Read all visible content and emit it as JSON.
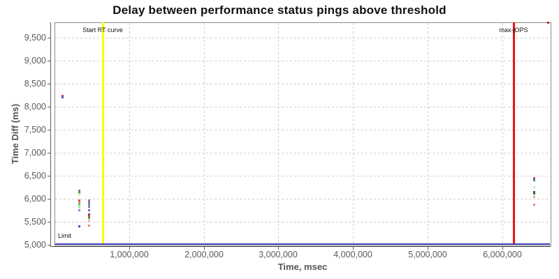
{
  "chart_data": {
    "type": "scatter",
    "title": "Delay between performance status pings above threshold",
    "xlabel": "Time, msec",
    "ylabel": "Time Diff (ms)",
    "xlim": [
      0,
      6650000
    ],
    "ylim": [
      5000,
      9840
    ],
    "grid": "dashed-lightgray-both-axes",
    "legend": "none",
    "x_ticks": [
      {
        "value": 1000000,
        "label": "1,000,000"
      },
      {
        "value": 2000000,
        "label": "2,000,000"
      },
      {
        "value": 3000000,
        "label": "3,000,000"
      },
      {
        "value": 4000000,
        "label": "4,000,000"
      },
      {
        "value": 5000000,
        "label": "5,000,000"
      },
      {
        "value": 6000000,
        "label": "6,000,000"
      }
    ],
    "y_ticks": [
      {
        "value": 5000,
        "label": "5,000"
      },
      {
        "value": 5500,
        "label": "5,500"
      },
      {
        "value": 6000,
        "label": "6,000"
      },
      {
        "value": 6500,
        "label": "6,500"
      },
      {
        "value": 7000,
        "label": "7,000"
      },
      {
        "value": 7500,
        "label": "7,500"
      },
      {
        "value": 8000,
        "label": "8,000"
      },
      {
        "value": 8500,
        "label": "8,500"
      },
      {
        "value": 9000,
        "label": "9,000"
      },
      {
        "value": 9500,
        "label": "9,500"
      }
    ],
    "annotations": [
      {
        "name": "start-rt-curve",
        "type": "vline",
        "x": 650000,
        "label": "Start RT curve",
        "color": "#ffff00"
      },
      {
        "name": "max-jops",
        "type": "vline",
        "x": 6150000,
        "label": "max-jOPS",
        "color": "#ee1111"
      },
      {
        "name": "limit",
        "type": "hline",
        "y": 5000,
        "label": "Limit",
        "color": "#3535b5"
      }
    ],
    "points": [
      {
        "x": 110000,
        "y": 8245,
        "color": "#b5493a"
      },
      {
        "x": 110000,
        "y": 8212,
        "color": "#4a55c8"
      },
      {
        "x": 330000,
        "y": 6176,
        "color": "#a85aa8"
      },
      {
        "x": 330000,
        "y": 6140,
        "color": "#2f9a9a"
      },
      {
        "x": 330000,
        "y": 6095,
        "color": "#e8e868"
      },
      {
        "x": 330000,
        "y": 5956,
        "color": "#d85555"
      },
      {
        "x": 330000,
        "y": 5920,
        "color": "#ef9a8a"
      },
      {
        "x": 330000,
        "y": 5888,
        "color": "#4fa84f"
      },
      {
        "x": 330000,
        "y": 5852,
        "color": "#8fe88f"
      },
      {
        "x": 330000,
        "y": 5812,
        "color": "#a8f0a8"
      },
      {
        "x": 330000,
        "y": 5745,
        "color": "#8a8af0"
      },
      {
        "x": 330000,
        "y": 5395,
        "color": "#4a4ad0"
      },
      {
        "x": 460000,
        "y": 5956,
        "color": "#c858c8"
      },
      {
        "x": 460000,
        "y": 5920,
        "color": "#3aa0a0"
      },
      {
        "x": 460000,
        "y": 5865,
        "color": "#8a8a8a"
      },
      {
        "x": 460000,
        "y": 5820,
        "color": "#7a88aa"
      },
      {
        "x": 460000,
        "y": 5745,
        "color": "#6a6ae8"
      },
      {
        "x": 460000,
        "y": 5655,
        "color": "#9a3a3a"
      },
      {
        "x": 460000,
        "y": 5617,
        "color": "#d84848"
      },
      {
        "x": 460000,
        "y": 5577,
        "color": "#48a048"
      },
      {
        "x": 460000,
        "y": 5525,
        "color": "#f2a8c0"
      },
      {
        "x": 460000,
        "y": 5410,
        "color": "#f08878"
      },
      {
        "x": 6430000,
        "y": 6450,
        "color": "#c03890"
      },
      {
        "x": 6430000,
        "y": 6405,
        "color": "#2f9a9a"
      },
      {
        "x": 6430000,
        "y": 6252,
        "color": "#a8f0f0"
      },
      {
        "x": 6430000,
        "y": 6146,
        "color": "#3a4a5a"
      },
      {
        "x": 6430000,
        "y": 6114,
        "color": "#3a6a4a"
      },
      {
        "x": 6430000,
        "y": 6040,
        "color": "#c8b888"
      },
      {
        "x": 6430000,
        "y": 5873,
        "color": "#f08888"
      },
      {
        "x": 6620000,
        "y": 9828,
        "color": "#c03030"
      }
    ]
  }
}
